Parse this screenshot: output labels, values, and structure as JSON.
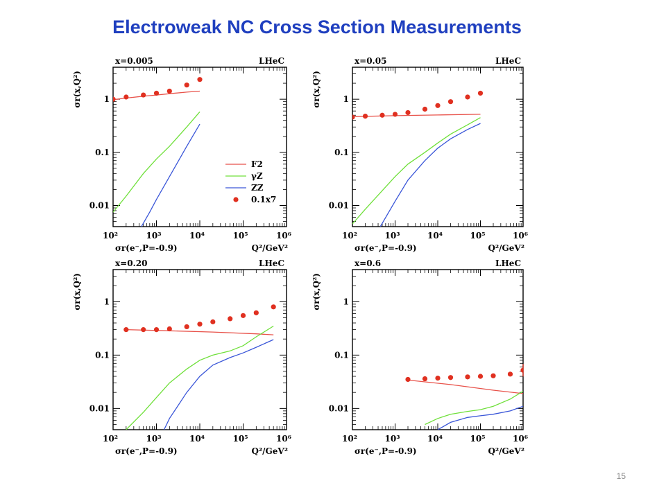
{
  "slide": {
    "title": "Electroweak NC Cross Section Measurements",
    "page_number": "15"
  },
  "colors": {
    "title": "#1f3fbf",
    "F2": "#e8524a",
    "gammaZ": "#6fe03a",
    "ZZ": "#3a56d8",
    "points": "#e03020"
  },
  "legend": {
    "entries": [
      "F2",
      "γZ",
      "ZZ",
      "0.1x7"
    ],
    "placement": "center-right of top-left panel"
  },
  "chart_data": [
    {
      "type": "line",
      "x_scale": "log",
      "y_scale": "log",
      "xlim": [
        100,
        1000000
      ],
      "ylim": [
        0.004,
        4
      ],
      "corner_left": "x=0.005",
      "corner_right": "LHeC",
      "ylabel": "σr(x,Q²)",
      "xlabel_left": "σr(e⁻,P=-0.9)",
      "xlabel_right": "Q²/GeV²",
      "x_ticks": [
        "10²",
        "10³",
        "10⁴",
        "10⁵",
        "10⁶"
      ],
      "y_ticks": [
        "0.01",
        "0.1",
        "1"
      ],
      "series": [
        {
          "name": "F2",
          "x": [
            100,
            200,
            500,
            1000,
            2000,
            5000,
            10000
          ],
          "y": [
            0.98,
            1.05,
            1.14,
            1.2,
            1.27,
            1.36,
            1.42
          ]
        },
        {
          "name": "γZ",
          "x": [
            100,
            200,
            500,
            1000,
            2000,
            5000,
            10000
          ],
          "y": [
            0.0075,
            0.015,
            0.04,
            0.075,
            0.13,
            0.3,
            0.58
          ]
        },
        {
          "name": "ZZ",
          "x": [
            450,
            700,
            1000,
            2000,
            5000,
            10000
          ],
          "y": [
            0.004,
            0.0075,
            0.013,
            0.035,
            0.13,
            0.34
          ]
        },
        {
          "name": "0.1x7",
          "x": [
            100,
            200,
            500,
            1000,
            2000,
            5000,
            10000
          ],
          "y": [
            1.0,
            1.1,
            1.2,
            1.3,
            1.42,
            1.85,
            2.35
          ]
        }
      ]
    },
    {
      "type": "line",
      "x_scale": "log",
      "y_scale": "log",
      "xlim": [
        100,
        1000000
      ],
      "ylim": [
        0.004,
        4
      ],
      "corner_left": "x=0.05",
      "corner_right": "LHeC",
      "ylabel": "σr(x,Q²)",
      "xlabel_left": "σr(e⁻,P=-0.9)",
      "xlabel_right": "Q²/GeV²",
      "x_ticks": [
        "10²",
        "10³",
        "10⁴",
        "10⁵",
        "10⁶"
      ],
      "y_ticks": [
        "0.01",
        "0.1",
        "1"
      ],
      "series": [
        {
          "name": "F2",
          "x": [
            100,
            1000,
            10000,
            100000
          ],
          "y": [
            0.47,
            0.49,
            0.505,
            0.52
          ]
        },
        {
          "name": "γZ",
          "x": [
            100,
            200,
            500,
            1000,
            2000,
            5000,
            10000,
            20000,
            50000,
            100000
          ],
          "y": [
            0.0045,
            0.0085,
            0.019,
            0.035,
            0.06,
            0.1,
            0.15,
            0.22,
            0.33,
            0.45
          ]
        },
        {
          "name": "ZZ",
          "x": [
            450,
            1000,
            2000,
            5000,
            10000,
            20000,
            50000,
            100000
          ],
          "y": [
            0.004,
            0.012,
            0.03,
            0.07,
            0.12,
            0.18,
            0.27,
            0.35
          ]
        },
        {
          "name": "0.1x7",
          "x": [
            100,
            200,
            500,
            1000,
            2000,
            5000,
            10000,
            20000,
            50000,
            100000
          ],
          "y": [
            0.46,
            0.48,
            0.5,
            0.52,
            0.56,
            0.65,
            0.76,
            0.9,
            1.1,
            1.3
          ]
        }
      ]
    },
    {
      "type": "line",
      "x_scale": "log",
      "y_scale": "log",
      "xlim": [
        100,
        1000000
      ],
      "ylim": [
        0.004,
        4
      ],
      "corner_left": "x=0.20",
      "corner_right": "LHeC",
      "ylabel": "σr(x,Q²)",
      "xlabel_left": "σr(e⁻,P=-0.9)",
      "xlabel_right": "Q²/GeV²",
      "x_ticks": [
        "10²",
        "10³",
        "10⁴",
        "10⁵",
        "10⁶"
      ],
      "y_ticks": [
        "0.01",
        "0.1",
        "1"
      ],
      "series": [
        {
          "name": "F2",
          "x": [
            200,
            2000,
            20000,
            200000,
            500000
          ],
          "y": [
            0.3,
            0.285,
            0.27,
            0.25,
            0.24
          ]
        },
        {
          "name": "γZ",
          "x": [
            200,
            500,
            1000,
            2000,
            5000,
            10000,
            20000,
            50000,
            100000,
            200000,
            500000
          ],
          "y": [
            0.004,
            0.0085,
            0.016,
            0.03,
            0.055,
            0.08,
            0.1,
            0.12,
            0.15,
            0.22,
            0.35
          ]
        },
        {
          "name": "ZZ",
          "x": [
            1500,
            2000,
            5000,
            10000,
            20000,
            50000,
            100000,
            200000,
            500000
          ],
          "y": [
            0.004,
            0.0065,
            0.02,
            0.04,
            0.065,
            0.09,
            0.11,
            0.14,
            0.195
          ]
        },
        {
          "name": "0.1x7",
          "x": [
            200,
            500,
            1000,
            2000,
            5000,
            10000,
            20000,
            50000,
            100000,
            200000,
            500000
          ],
          "y": [
            0.3,
            0.3,
            0.3,
            0.31,
            0.34,
            0.38,
            0.42,
            0.48,
            0.55,
            0.62,
            0.8
          ]
        }
      ]
    },
    {
      "type": "line",
      "x_scale": "log",
      "y_scale": "log",
      "xlim": [
        100,
        1000000
      ],
      "ylim": [
        0.004,
        4
      ],
      "corner_left": "x=0.6",
      "corner_right": "LHeC",
      "ylabel": "σr(x,Q²)",
      "xlabel_left": "σr(e⁻,P=-0.9)",
      "xlabel_right": "Q²/GeV²",
      "x_ticks": [
        "10²",
        "10³",
        "10⁴",
        "10⁵",
        "10⁶"
      ],
      "y_ticks": [
        "0.01",
        "0.1",
        "1"
      ],
      "series": [
        {
          "name": "F2",
          "x": [
            2000,
            20000,
            200000,
            1000000
          ],
          "y": [
            0.034,
            0.028,
            0.022,
            0.019
          ]
        },
        {
          "name": "γZ",
          "x": [
            5000,
            10000,
            20000,
            50000,
            100000,
            200000,
            500000,
            1000000
          ],
          "y": [
            0.005,
            0.0065,
            0.0078,
            0.0088,
            0.0095,
            0.011,
            0.015,
            0.021
          ]
        },
        {
          "name": "ZZ",
          "x": [
            10000,
            20000,
            50000,
            100000,
            200000,
            500000,
            1000000
          ],
          "y": [
            0.004,
            0.0055,
            0.0068,
            0.0073,
            0.0078,
            0.009,
            0.011
          ]
        },
        {
          "name": "0.1x7",
          "x": [
            2000,
            5000,
            10000,
            20000,
            50000,
            100000,
            200000,
            500000,
            1000000
          ],
          "y": [
            0.035,
            0.036,
            0.037,
            0.038,
            0.039,
            0.04,
            0.041,
            0.044,
            0.052
          ]
        }
      ]
    }
  ]
}
